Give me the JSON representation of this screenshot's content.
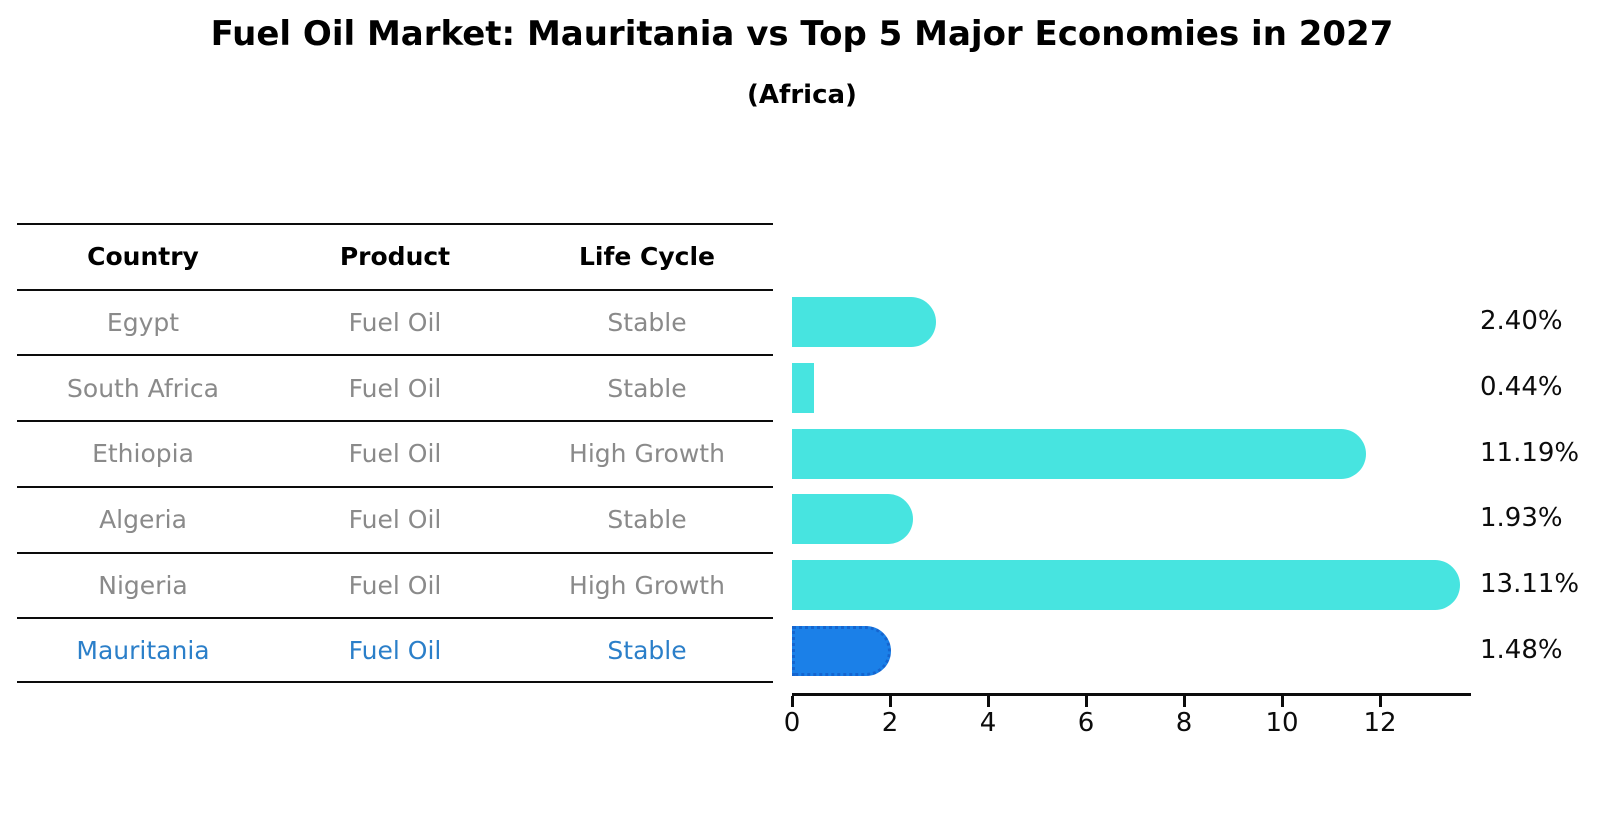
{
  "title": "Fuel Oil Market: Mauritania vs Top 5 Major Economies in 2027",
  "subtitle": "(Africa)",
  "table": {
    "headers": [
      "Country",
      "Product",
      "Life Cycle"
    ],
    "rows": [
      {
        "country": "Egypt",
        "product": "Fuel Oil",
        "life_cycle": "Stable",
        "highlight": false
      },
      {
        "country": "South Africa",
        "product": "Fuel Oil",
        "life_cycle": "Stable",
        "highlight": false
      },
      {
        "country": "Ethiopia",
        "product": "Fuel Oil",
        "life_cycle": "High Growth",
        "highlight": false
      },
      {
        "country": "Algeria",
        "product": "Fuel Oil",
        "life_cycle": "Stable",
        "highlight": false
      },
      {
        "country": "Nigeria",
        "product": "Fuel Oil",
        "life_cycle": "High Growth",
        "highlight": false
      },
      {
        "country": "Mauritania",
        "product": "Fuel Oil",
        "life_cycle": "Stable",
        "highlight": true
      }
    ]
  },
  "chart_data": {
    "type": "bar",
    "orientation": "horizontal",
    "title": "Fuel Oil Market: Mauritania vs Top 5 Major Economies in 2027",
    "subtitle": "(Africa)",
    "categories": [
      "Egypt",
      "South Africa",
      "Ethiopia",
      "Algeria",
      "Nigeria",
      "Mauritania"
    ],
    "values": [
      2.4,
      0.44,
      11.19,
      1.93,
      13.11,
      1.48
    ],
    "labels": [
      "2.40%",
      "0.44%",
      "11.19%",
      "1.93%",
      "13.11%",
      "1.48%"
    ],
    "unit": "percent",
    "highlight_index": 5,
    "x_ticks": [
      0,
      2,
      4,
      6,
      8,
      10,
      12
    ],
    "xlim": [
      0,
      13.84
    ],
    "grid": false,
    "legend": false,
    "bar_color": "#47e4e0",
    "highlight_bar_color": "#1b80e8",
    "highlight_text_color": "#2b7fc9"
  }
}
